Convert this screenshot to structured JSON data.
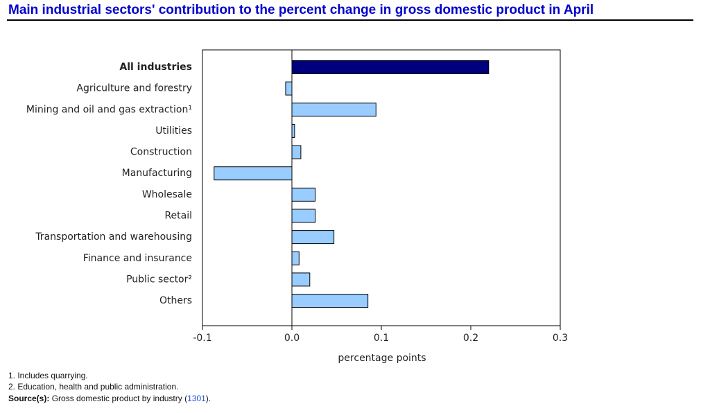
{
  "chart_data": {
    "type": "hbar",
    "title": "Main industrial sectors' contribution to the percent change in gross domestic product in April",
    "categories": [
      "All industries",
      "Agriculture and forestry",
      "Mining and oil and gas extraction¹",
      "Utilities",
      "Construction",
      "Manufacturing",
      "Wholesale",
      "Retail",
      "Transportation and warehousing",
      "Finance and insurance",
      "Public sector²",
      "Others"
    ],
    "values": [
      0.22,
      -0.007,
      0.094,
      0.003,
      0.01,
      -0.087,
      0.026,
      0.026,
      0.047,
      0.008,
      0.02,
      0.085
    ],
    "colors": [
      "#00007f",
      "#99ccff",
      "#99ccff",
      "#99ccff",
      "#99ccff",
      "#99ccff",
      "#99ccff",
      "#99ccff",
      "#99ccff",
      "#99ccff",
      "#99ccff",
      "#99ccff"
    ],
    "xlim": [
      -0.1,
      0.3
    ],
    "xticks": [
      -0.1,
      {
        "value": 0,
        "label": "0.0"
      },
      0.1,
      0.2,
      0.3
    ],
    "xlabel": "percentage points",
    "grid": false,
    "footnotes": [
      "1. Includes quarrying.",
      "2. Education, health and public administration."
    ],
    "source": {
      "label": "Source(s):",
      "before": "Gross domestic product by industry (",
      "link": "1301",
      "after": ")."
    }
  }
}
